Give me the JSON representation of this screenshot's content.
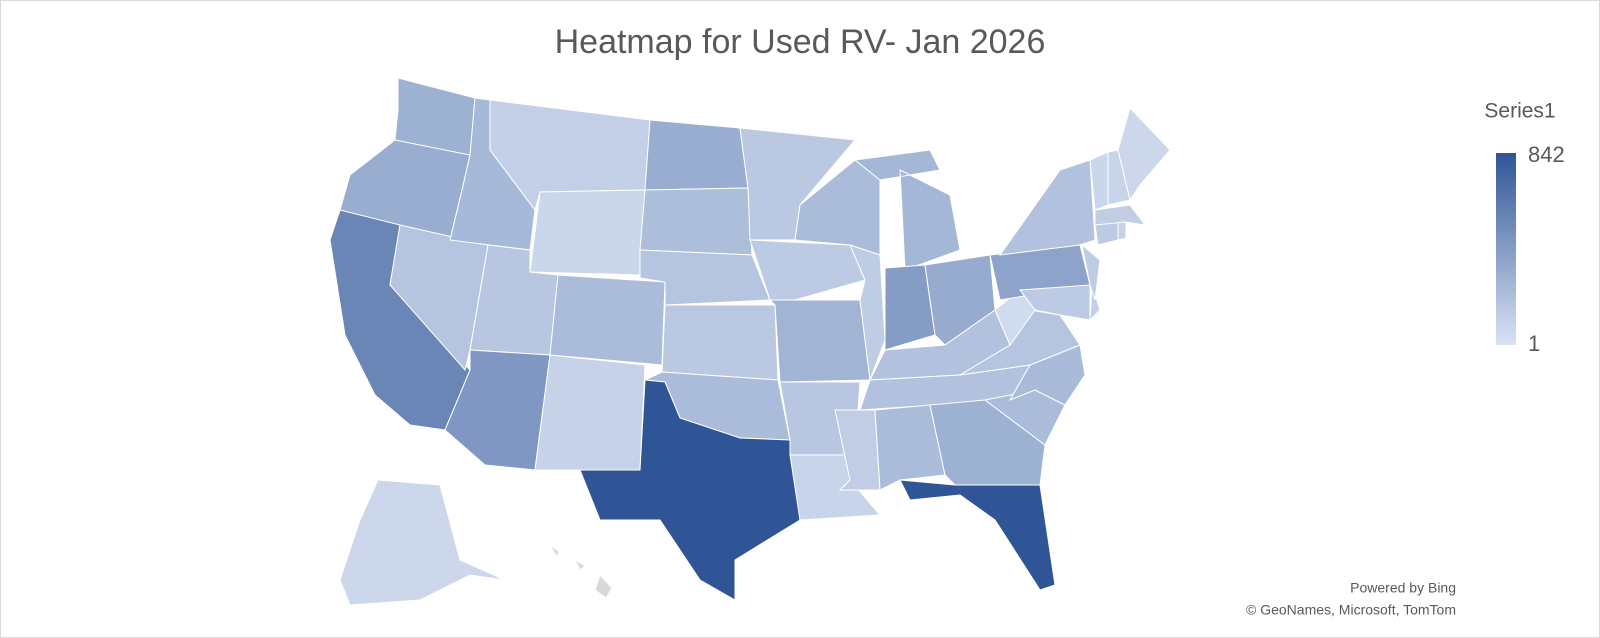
{
  "chart_data": {
    "type": "map",
    "title": "Heatmap for Used RV- Jan 2026",
    "legend_title": "Series1",
    "colorlim": [
      1,
      842
    ],
    "colors": [
      "#dae3f3",
      "#2f5597"
    ],
    "missing_color": "#d9d9d9",
    "values": [
      300,
      320,
      550,
      180,
      250,
      120,
      80,
      170,
      230,
      450,
      100,
      320,
      220,
      180,
      160,
      230,
      842,
      160,
      150,
      280,
      170,
      90,
      230,
      140,
      260,
      420,
      330,
      200,
      200,
      130,
      230,
      300,
      842,
      230,
      240,
      180,
      50,
      380,
      200,
      150,
      120,
      140,
      150,
      100,
      130,
      80,
      90,
      70,
      70,
      null
    ],
    "attribution": [
      "Powered by Bing",
      "© GeoNames, Microsoft, TomTom"
    ]
  }
}
